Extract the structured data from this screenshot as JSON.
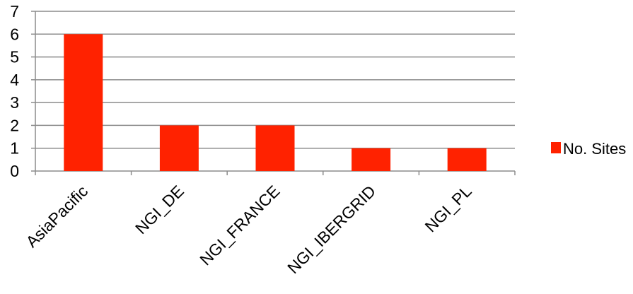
{
  "chart_data": {
    "type": "bar",
    "categories": [
      "AsiaPacific",
      "NGI_DE",
      "NGI_FRANCE",
      "NGI_IBERGRID",
      "NGI_PL"
    ],
    "series": [
      {
        "name": "No. Sites",
        "values": [
          6,
          2,
          2,
          1,
          1
        ],
        "color": "#ff2200"
      }
    ],
    "ylim": [
      0,
      7
    ],
    "yticks": [
      0,
      1,
      2,
      3,
      4,
      5,
      6,
      7
    ],
    "grid": true,
    "legend": "right",
    "title": "",
    "xlabel": "",
    "ylabel": ""
  }
}
